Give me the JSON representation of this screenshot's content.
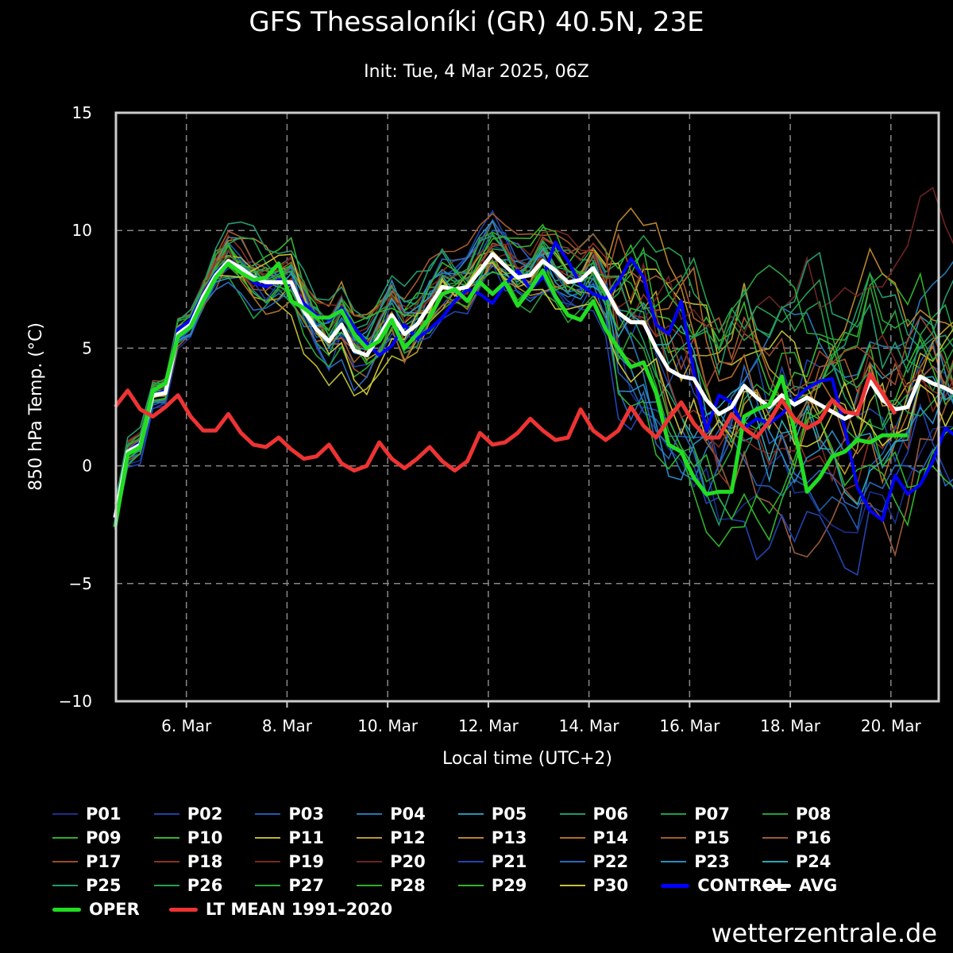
{
  "title": "GFS Thessaloníki (GR) 40.5N, 23E",
  "subtitle": "Init: Tue, 4 Mar 2025, 06Z",
  "credit": "wetterzentrale.de",
  "chart_data": {
    "type": "line",
    "ylabel": "850 hPa Temp. (°C)",
    "xlabel": "Local time (UTC+2)",
    "ylim": [
      -10,
      15
    ],
    "yticks": [
      15,
      10,
      5,
      0,
      -5,
      -10
    ],
    "xlim_days": [
      4.6,
      20.95
    ],
    "xticks": [
      {
        "label": "6. Mar",
        "day": 6
      },
      {
        "label": "8. Mar",
        "day": 8
      },
      {
        "label": "10. Mar",
        "day": 10
      },
      {
        "label": "12. Mar",
        "day": 12
      },
      {
        "label": "14. Mar",
        "day": 14
      },
      {
        "label": "16. Mar",
        "day": 16
      },
      {
        "label": "18. Mar",
        "day": 18
      },
      {
        "label": "20. Mar",
        "day": 20
      }
    ],
    "grid": true,
    "legend_position": "bottom",
    "step_hours": 6,
    "start_time": "4 Mar 2025 14:00 local",
    "highlight_series": [
      {
        "name": "CONTROL",
        "color": "#0000ff",
        "width": 4,
        "values": [
          -2.4,
          0.6,
          1.0,
          3.0,
          3.2,
          5.8,
          6.2,
          7.3,
          8.2,
          8.7,
          8.3,
          7.8,
          7.6,
          7.9,
          7.7,
          6.9,
          6.4,
          6.2,
          6.7,
          5.9,
          5.2,
          4.7,
          5.1,
          6.0,
          5.4,
          5.8,
          6.3,
          7.0,
          7.5,
          7.3,
          6.9,
          7.7,
          8.3,
          7.5,
          8.0,
          9.5,
          8.7,
          7.7,
          7.3,
          7.1,
          7.8,
          8.8,
          8.0,
          6.0,
          5.6,
          7.0,
          4.0,
          1.5,
          3.0,
          2.7,
          1.6,
          2.0,
          1.8,
          2.2,
          2.8,
          3.3,
          3.6,
          3.7,
          1.6,
          -0.9,
          -1.9,
          -2.3,
          -0.4,
          -1.2,
          -0.8,
          0.2,
          1.6,
          1.2,
          1.3
        ]
      },
      {
        "name": "AVG",
        "color": "#ffffff",
        "width": 5,
        "values": [
          -2.2,
          0.6,
          0.9,
          3.0,
          3.1,
          5.6,
          6.0,
          7.2,
          8.1,
          8.7,
          8.4,
          8.0,
          7.8,
          7.8,
          7.8,
          6.6,
          5.8,
          5.3,
          6.0,
          4.9,
          4.7,
          5.5,
          6.4,
          5.6,
          6.0,
          6.8,
          7.6,
          7.5,
          7.6,
          8.3,
          9.0,
          8.5,
          8.0,
          8.1,
          8.7,
          8.3,
          7.8,
          7.9,
          8.4,
          7.5,
          6.5,
          6.1,
          6.1,
          5.0,
          4.1,
          3.8,
          3.7,
          2.8,
          2.2,
          2.5,
          3.4,
          2.9,
          2.5,
          3.0,
          2.6,
          2.9,
          2.6,
          2.3,
          2.0,
          2.3,
          3.6,
          2.8,
          2.4,
          2.5,
          3.8,
          3.5,
          3.3,
          3.0
        ]
      },
      {
        "name": "OPER",
        "color": "#22dd22",
        "width": 5,
        "values": [
          -2.6,
          0.5,
          0.8,
          3.2,
          3.5,
          5.5,
          5.9,
          7.0,
          8.0,
          8.6,
          8.2,
          7.9,
          8.0,
          8.6,
          7.0,
          6.7,
          6.3,
          6.3,
          6.6,
          5.6,
          5.0,
          5.3,
          6.2,
          5.0,
          5.6,
          6.3,
          7.3,
          7.5,
          7.0,
          7.8,
          7.3,
          7.8,
          6.8,
          7.5,
          8.3,
          7.2,
          6.4,
          6.2,
          7.0,
          5.8,
          5.0,
          4.2,
          4.4,
          3.1,
          0.9,
          0.6,
          -0.5,
          -1.2,
          -1.1,
          -1.1,
          2.1,
          2.4,
          2.6,
          3.8,
          1.5,
          -1.1,
          -0.5,
          0.4,
          0.6,
          1.1,
          1.0,
          1.3,
          1.3,
          1.3
        ]
      },
      {
        "name": "LT MEAN 1991–2020",
        "color": "#ee3333",
        "width": 5,
        "values": [
          2.5,
          3.2,
          2.4,
          2.1,
          2.5,
          3.0,
          2.1,
          1.5,
          1.5,
          2.2,
          1.4,
          0.9,
          0.8,
          1.2,
          0.7,
          0.3,
          0.4,
          0.9,
          0.1,
          -0.2,
          0.0,
          1.0,
          0.3,
          -0.1,
          0.3,
          0.8,
          0.2,
          -0.2,
          0.2,
          1.4,
          0.9,
          1.0,
          1.4,
          2.0,
          1.5,
          1.1,
          1.2,
          2.4,
          1.5,
          1.1,
          1.5,
          2.5,
          1.7,
          1.2,
          2.0,
          2.7,
          1.8,
          1.2,
          1.2,
          2.2,
          1.6,
          1.2,
          1.9,
          2.8,
          2.0,
          1.6,
          1.9,
          2.8,
          2.3,
          2.2,
          3.9,
          3.1,
          2.2
        ]
      }
    ],
    "members": [
      {
        "name": "P01",
        "color": "#1a2f8c"
      },
      {
        "name": "P02",
        "color": "#1d44a6"
      },
      {
        "name": "P03",
        "color": "#1f5cad"
      },
      {
        "name": "P04",
        "color": "#2478b3"
      },
      {
        "name": "P05",
        "color": "#2a93b5"
      },
      {
        "name": "P06",
        "color": "#1f9a6e"
      },
      {
        "name": "P07",
        "color": "#21a04a"
      },
      {
        "name": "P08",
        "color": "#2aa035"
      },
      {
        "name": "P09",
        "color": "#2fae2a"
      },
      {
        "name": "P10",
        "color": "#35b72f"
      },
      {
        "name": "P11",
        "color": "#b9b72f"
      },
      {
        "name": "P12",
        "color": "#b99a2a"
      },
      {
        "name": "P13",
        "color": "#b7842a"
      },
      {
        "name": "P14",
        "color": "#b06c29"
      },
      {
        "name": "P15",
        "color": "#a55a2a"
      },
      {
        "name": "P16",
        "color": "#9a5a3a"
      },
      {
        "name": "P17",
        "color": "#9c4a2a"
      },
      {
        "name": "P18",
        "color": "#8c3224"
      },
      {
        "name": "P19",
        "color": "#7a2a1e"
      },
      {
        "name": "P20",
        "color": "#6c2420"
      },
      {
        "name": "P21",
        "color": "#2244b2"
      },
      {
        "name": "P22",
        "color": "#2a66c0"
      },
      {
        "name": "P23",
        "color": "#2a8ac2"
      },
      {
        "name": "P24",
        "color": "#2aa6b6"
      },
      {
        "name": "P25",
        "color": "#239a70"
      },
      {
        "name": "P26",
        "color": "#23a050"
      },
      {
        "name": "P27",
        "color": "#28a638"
      },
      {
        "name": "P28",
        "color": "#2db12a"
      },
      {
        "name": "P29",
        "color": "#32b52a"
      },
      {
        "name": "P30",
        "color": "#c9c236"
      }
    ],
    "legend": [
      "P01",
      "P02",
      "P03",
      "P04",
      "P05",
      "P06",
      "P07",
      "P08",
      "P09",
      "P10",
      "P11",
      "P12",
      "P13",
      "P14",
      "P15",
      "P16",
      "P17",
      "P18",
      "P19",
      "P20",
      "P21",
      "P22",
      "P23",
      "P24",
      "P25",
      "P26",
      "P27",
      "P28",
      "P29",
      "P30",
      "CONTROL",
      "AVG",
      "OPER",
      "LT MEAN 1991–2020"
    ]
  }
}
